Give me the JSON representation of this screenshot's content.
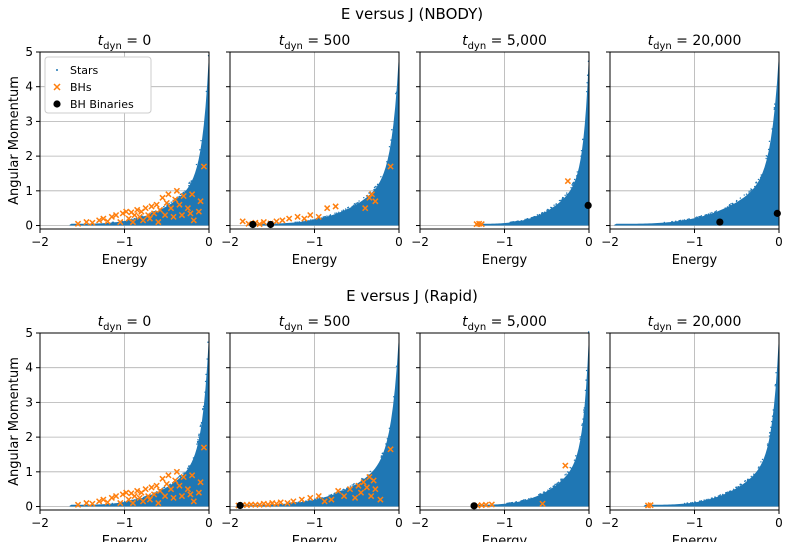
{
  "figure": {
    "row_titles": [
      "E versus J (NBODY)",
      "E versus J (Rapid)"
    ]
  },
  "colors": {
    "stars": "#1f77b4",
    "bhs": "#ff7f0e",
    "bh_binaries": "#000000"
  },
  "legend": {
    "labels": [
      "Stars",
      "BHs",
      "BH Binaries"
    ],
    "placement": "upper-left of first panel"
  },
  "chart_data": [
    {
      "type": "scatter",
      "row": 0,
      "col": 0,
      "title_var": "t",
      "title_sub": "dyn",
      "title_value": "= 0",
      "xlabel": "Energy",
      "ylabel": "Angular Momentum",
      "xlim": [
        -2,
        0
      ],
      "ylim": [
        -0.1,
        5
      ],
      "xticks": [
        "−2",
        "−1",
        "0"
      ],
      "yticks": [
        "0",
        "1",
        "2",
        "3",
        "4",
        "5"
      ],
      "grid": true,
      "stars_envelope": {
        "emin": -1.65,
        "jmax_at_emin": 0.05,
        "shape": "rising-curve",
        "j_at_zero": 4.9
      },
      "series": [
        {
          "name": "BHs",
          "marker": "x",
          "points": [
            [
              -1.55,
              0.05
            ],
            [
              -1.45,
              0.1
            ],
            [
              -1.38,
              0.08
            ],
            [
              -1.3,
              0.15
            ],
            [
              -1.25,
              0.2
            ],
            [
              -1.2,
              0.12
            ],
            [
              -1.15,
              0.25
            ],
            [
              -1.1,
              0.3
            ],
            [
              -1.05,
              0.1
            ],
            [
              -1.02,
              0.35
            ],
            [
              -0.98,
              0.4
            ],
            [
              -0.95,
              0.2
            ],
            [
              -0.92,
              0.38
            ],
            [
              -0.9,
              0.1
            ],
            [
              -0.88,
              0.3
            ],
            [
              -0.85,
              0.45
            ],
            [
              -0.82,
              0.25
            ],
            [
              -0.8,
              0.4
            ],
            [
              -0.78,
              0.15
            ],
            [
              -0.75,
              0.5
            ],
            [
              -0.72,
              0.3
            ],
            [
              -0.7,
              0.2
            ],
            [
              -0.68,
              0.55
            ],
            [
              -0.65,
              0.35
            ],
            [
              -0.62,
              0.6
            ],
            [
              -0.6,
              0.1
            ],
            [
              -0.58,
              0.45
            ],
            [
              -0.55,
              0.8
            ],
            [
              -0.52,
              0.3
            ],
            [
              -0.5,
              0.65
            ],
            [
              -0.48,
              0.9
            ],
            [
              -0.45,
              0.5
            ],
            [
              -0.42,
              0.25
            ],
            [
              -0.4,
              0.75
            ],
            [
              -0.38,
              1.0
            ],
            [
              -0.35,
              0.6
            ],
            [
              -0.32,
              0.3
            ],
            [
              -0.3,
              0.85
            ],
            [
              -0.25,
              0.5
            ],
            [
              -0.22,
              0.35
            ],
            [
              -0.2,
              0.9
            ],
            [
              -0.18,
              0.15
            ],
            [
              -0.12,
              0.4
            ],
            [
              -0.1,
              0.7
            ],
            [
              -0.06,
              1.7
            ]
          ]
        },
        {
          "name": "BH Binaries",
          "marker": "o",
          "points": []
        }
      ]
    },
    {
      "type": "scatter",
      "row": 0,
      "col": 1,
      "title_var": "t",
      "title_sub": "dyn",
      "title_value": "= 500",
      "xlabel": "Energy",
      "xlim": [
        -2,
        0
      ],
      "ylim": [
        -0.1,
        5
      ],
      "xticks": [
        "−2",
        "−1",
        "0"
      ],
      "grid": true,
      "stars_envelope": {
        "emin": -1.8,
        "jmax_at_emin": 0.05,
        "shape": "rising-curve",
        "j_at_zero": 4.9
      },
      "series": [
        {
          "name": "BHs",
          "marker": "x",
          "points": [
            [
              -1.85,
              0.12
            ],
            [
              -1.78,
              0.05
            ],
            [
              -1.7,
              0.08
            ],
            [
              -1.65,
              0.04
            ],
            [
              -1.6,
              0.1
            ],
            [
              -1.52,
              0.06
            ],
            [
              -1.45,
              0.12
            ],
            [
              -1.38,
              0.15
            ],
            [
              -1.3,
              0.2
            ],
            [
              -1.2,
              0.25
            ],
            [
              -1.12,
              0.2
            ],
            [
              -1.05,
              0.3
            ],
            [
              -0.95,
              0.25
            ],
            [
              -0.85,
              0.5
            ],
            [
              -0.75,
              0.55
            ],
            [
              -0.4,
              0.5
            ],
            [
              -0.35,
              0.8
            ],
            [
              -0.32,
              0.9
            ],
            [
              -0.28,
              0.7
            ],
            [
              -0.1,
              1.7
            ]
          ]
        },
        {
          "name": "BH Binaries",
          "marker": "o",
          "points": [
            [
              -1.73,
              0.03
            ],
            [
              -1.52,
              0.03
            ]
          ]
        }
      ]
    },
    {
      "type": "scatter",
      "row": 0,
      "col": 2,
      "title_var": "t",
      "title_sub": "dyn",
      "title_value": "= 5,000",
      "xlabel": "Energy",
      "xlim": [
        -2,
        0
      ],
      "ylim": [
        -0.1,
        5
      ],
      "xticks": [
        "−2",
        "−1",
        "0"
      ],
      "grid": true,
      "stars_envelope": {
        "emin": -1.35,
        "jmax_at_emin": 0.05,
        "shape": "rising-curve",
        "j_at_zero": 4.9
      },
      "series": [
        {
          "name": "BHs",
          "marker": "x",
          "points": [
            [
              -1.33,
              0.04
            ],
            [
              -1.3,
              0.05
            ],
            [
              -1.27,
              0.04
            ],
            [
              -0.25,
              1.28
            ]
          ]
        },
        {
          "name": "BH Binaries",
          "marker": "o",
          "points": [
            [
              -0.01,
              0.58
            ]
          ]
        }
      ]
    },
    {
      "type": "scatter",
      "row": 0,
      "col": 3,
      "title_var": "t",
      "title_sub": "dyn",
      "title_value": "= 20,000",
      "xlabel": "Energy",
      "xlim": [
        -2,
        0
      ],
      "ylim": [
        -0.1,
        5
      ],
      "xticks": [
        "−2",
        "−1",
        "0"
      ],
      "grid": true,
      "stars_envelope": {
        "emin": -1.95,
        "jmax_at_emin": 0.05,
        "shape": "rising-curve",
        "j_at_zero": 4.9
      },
      "series": [
        {
          "name": "BHs",
          "marker": "x",
          "points": []
        },
        {
          "name": "BH Binaries",
          "marker": "o",
          "points": [
            [
              -0.7,
              0.1
            ],
            [
              -0.02,
              0.35
            ]
          ]
        }
      ]
    },
    {
      "type": "scatter",
      "row": 1,
      "col": 0,
      "title_var": "t",
      "title_sub": "dyn",
      "title_value": "= 0",
      "xlabel": "Energy",
      "ylabel": "Angular Momentum",
      "xlim": [
        -2,
        0
      ],
      "ylim": [
        -0.1,
        5
      ],
      "xticks": [
        "−2",
        "−1",
        "0"
      ],
      "yticks": [
        "0",
        "1",
        "2",
        "3",
        "4",
        "5"
      ],
      "grid": true,
      "stars_envelope": {
        "emin": -1.65,
        "jmax_at_emin": 0.05,
        "shape": "rising-curve",
        "j_at_zero": 4.9
      },
      "series": [
        {
          "name": "BHs",
          "marker": "x",
          "points": [
            [
              -1.55,
              0.05
            ],
            [
              -1.45,
              0.1
            ],
            [
              -1.38,
              0.08
            ],
            [
              -1.3,
              0.15
            ],
            [
              -1.25,
              0.2
            ],
            [
              -1.2,
              0.12
            ],
            [
              -1.15,
              0.25
            ],
            [
              -1.1,
              0.3
            ],
            [
              -1.05,
              0.1
            ],
            [
              -1.02,
              0.35
            ],
            [
              -0.98,
              0.4
            ],
            [
              -0.95,
              0.2
            ],
            [
              -0.92,
              0.38
            ],
            [
              -0.9,
              0.1
            ],
            [
              -0.88,
              0.3
            ],
            [
              -0.85,
              0.45
            ],
            [
              -0.82,
              0.25
            ],
            [
              -0.8,
              0.4
            ],
            [
              -0.78,
              0.15
            ],
            [
              -0.75,
              0.5
            ],
            [
              -0.72,
              0.3
            ],
            [
              -0.7,
              0.2
            ],
            [
              -0.68,
              0.55
            ],
            [
              -0.65,
              0.35
            ],
            [
              -0.62,
              0.6
            ],
            [
              -0.6,
              0.1
            ],
            [
              -0.58,
              0.45
            ],
            [
              -0.55,
              0.8
            ],
            [
              -0.52,
              0.3
            ],
            [
              -0.5,
              0.65
            ],
            [
              -0.48,
              0.9
            ],
            [
              -0.45,
              0.5
            ],
            [
              -0.42,
              0.25
            ],
            [
              -0.4,
              0.75
            ],
            [
              -0.38,
              1.0
            ],
            [
              -0.35,
              0.6
            ],
            [
              -0.32,
              0.3
            ],
            [
              -0.3,
              0.85
            ],
            [
              -0.25,
              0.5
            ],
            [
              -0.22,
              0.35
            ],
            [
              -0.2,
              0.9
            ],
            [
              -0.18,
              0.15
            ],
            [
              -0.12,
              0.4
            ],
            [
              -0.1,
              0.7
            ],
            [
              -0.06,
              1.7
            ]
          ]
        },
        {
          "name": "BH Binaries",
          "marker": "o",
          "points": []
        }
      ]
    },
    {
      "type": "scatter",
      "row": 1,
      "col": 1,
      "title_var": "t",
      "title_sub": "dyn",
      "title_value": "= 500",
      "xlabel": "Energy",
      "xlim": [
        -2,
        0
      ],
      "ylim": [
        -0.1,
        5
      ],
      "xticks": [
        "−2",
        "−1",
        "0"
      ],
      "grid": true,
      "stars_envelope": {
        "emin": -1.9,
        "jmax_at_emin": 0.05,
        "shape": "rising-curve",
        "j_at_zero": 4.9
      },
      "series": [
        {
          "name": "BHs",
          "marker": "x",
          "points": [
            [
              -1.9,
              0.03
            ],
            [
              -1.85,
              0.05
            ],
            [
              -1.8,
              0.04
            ],
            [
              -1.75,
              0.06
            ],
            [
              -1.7,
              0.05
            ],
            [
              -1.65,
              0.05
            ],
            [
              -1.6,
              0.08
            ],
            [
              -1.55,
              0.06
            ],
            [
              -1.5,
              0.1
            ],
            [
              -1.45,
              0.08
            ],
            [
              -1.4,
              0.12
            ],
            [
              -1.32,
              0.1
            ],
            [
              -1.25,
              0.15
            ],
            [
              -1.15,
              0.2
            ],
            [
              -1.05,
              0.25
            ],
            [
              -0.95,
              0.3
            ],
            [
              -0.88,
              0.15
            ],
            [
              -0.8,
              0.2
            ],
            [
              -0.72,
              0.45
            ],
            [
              -0.65,
              0.3
            ],
            [
              -0.58,
              0.5
            ],
            [
              -0.52,
              0.25
            ],
            [
              -0.48,
              0.6
            ],
            [
              -0.45,
              0.4
            ],
            [
              -0.42,
              0.7
            ],
            [
              -0.38,
              0.55
            ],
            [
              -0.35,
              0.85
            ],
            [
              -0.33,
              0.3
            ],
            [
              -0.3,
              0.75
            ],
            [
              -0.28,
              0.5
            ],
            [
              -0.22,
              0.2
            ],
            [
              -0.1,
              1.65
            ]
          ]
        },
        {
          "name": "BH Binaries",
          "marker": "o",
          "points": [
            [
              -1.88,
              0.03
            ]
          ]
        }
      ]
    },
    {
      "type": "scatter",
      "row": 1,
      "col": 2,
      "title_var": "t",
      "title_sub": "dyn",
      "title_value": "= 5,000",
      "xlabel": "Energy",
      "xlim": [
        -2,
        0
      ],
      "ylim": [
        -0.1,
        5
      ],
      "xticks": [
        "−2",
        "−1",
        "0"
      ],
      "grid": true,
      "stars_envelope": {
        "emin": -1.4,
        "jmax_at_emin": 0.05,
        "shape": "rising-curve",
        "j_at_zero": 4.9
      },
      "series": [
        {
          "name": "BHs",
          "marker": "x",
          "points": [
            [
              -1.32,
              0.03
            ],
            [
              -1.27,
              0.04
            ],
            [
              -1.22,
              0.05
            ],
            [
              -1.15,
              0.06
            ],
            [
              -0.55,
              0.08
            ],
            [
              -0.28,
              1.18
            ]
          ]
        },
        {
          "name": "BH Binaries",
          "marker": "o",
          "points": [
            [
              -1.36,
              0.02
            ]
          ]
        }
      ]
    },
    {
      "type": "scatter",
      "row": 1,
      "col": 3,
      "title_var": "t",
      "title_sub": "dyn",
      "title_value": "= 20,000",
      "xlabel": "Energy",
      "xlim": [
        -2,
        0
      ],
      "ylim": [
        -0.1,
        5
      ],
      "xticks": [
        "−2",
        "−1",
        "0"
      ],
      "grid": true,
      "stars_envelope": {
        "emin": -1.6,
        "jmax_at_emin": 0.05,
        "shape": "rising-curve",
        "j_at_zero": 4.9
      },
      "series": [
        {
          "name": "BHs",
          "marker": "x",
          "points": [
            [
              -1.55,
              0.03
            ],
            [
              -1.52,
              0.04
            ]
          ]
        },
        {
          "name": "BH Binaries",
          "marker": "o",
          "points": []
        }
      ]
    }
  ]
}
